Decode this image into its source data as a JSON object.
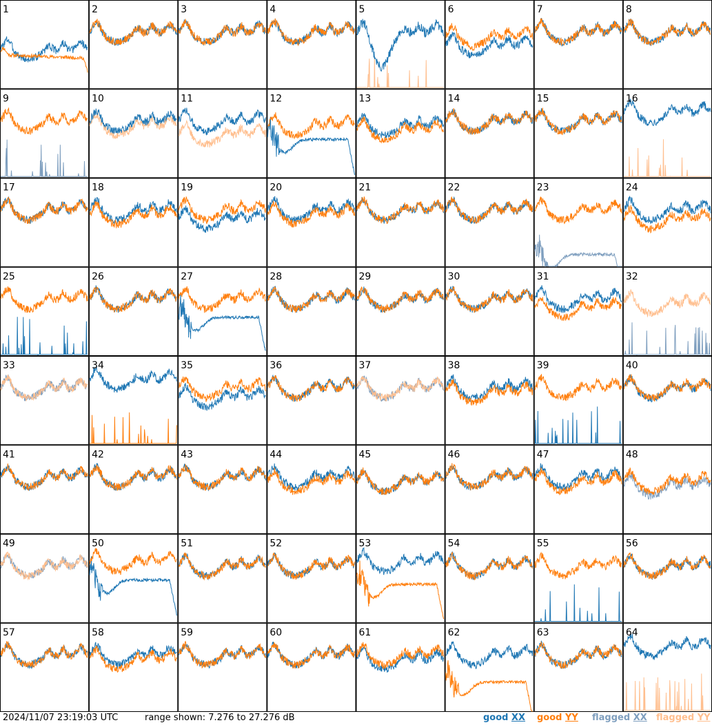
{
  "status": {
    "timestamp": "2024/11/07 23:19:03 UTC",
    "range_text": "range shown: 7.276 to 27.276 dB"
  },
  "legend": {
    "good_xx": {
      "word": "good",
      "pol": "XX",
      "color": "#1f77b4"
    },
    "good_yy": {
      "word": "good",
      "pol": "YY",
      "color": "#ff7f0e"
    },
    "flagged_xx": {
      "word": "flagged",
      "pol": "XX",
      "color": "#7f9fbf"
    },
    "flagged_yy": {
      "word": "flagged",
      "pol": "YY",
      "color": "#ffbf8f"
    }
  },
  "chart_data": {
    "type": "line",
    "ylim": [
      7.276,
      27.276
    ],
    "yunit": "dB",
    "grid": "8x8 small multiples",
    "series_styles": {
      "good_xx": "#1f77b4",
      "good_yy": "#ff7f0e",
      "flagged_xx": "#7f9fbf",
      "flagged_yy": "#ffbf8f"
    },
    "panels": [
      {
        "id": "1",
        "xx": "good",
        "yy": "good",
        "xx_mode": "normal",
        "yy_mode": "flat",
        "xx_level": 16,
        "yy_level": 15
      },
      {
        "id": "2",
        "xx": "good",
        "yy": "good",
        "xx_mode": "normal",
        "yy_mode": "normal",
        "xx_level": 20,
        "yy_level": 20
      },
      {
        "id": "3",
        "xx": "good",
        "yy": "good",
        "xx_mode": "normal",
        "yy_mode": "normal",
        "xx_level": 20,
        "yy_level": 20
      },
      {
        "id": "4",
        "xx": "good",
        "yy": "good",
        "xx_mode": "normal",
        "yy_mode": "normal",
        "xx_level": 20,
        "yy_level": 20
      },
      {
        "id": "5",
        "xx": "good",
        "yy": "flagged",
        "xx_mode": "dip",
        "yy_mode": "spikes",
        "xx_level": 20,
        "yy_level": 8
      },
      {
        "id": "6",
        "xx": "good",
        "yy": "good",
        "xx_mode": "normal",
        "yy_mode": "normal",
        "xx_level": 17,
        "yy_level": 19
      },
      {
        "id": "7",
        "xx": "good",
        "yy": "good",
        "xx_mode": "normal",
        "yy_mode": "normal",
        "xx_level": 20,
        "yy_level": 20
      },
      {
        "id": "8",
        "xx": "good",
        "yy": "good",
        "xx_mode": "normal",
        "yy_mode": "normal",
        "xx_level": 20,
        "yy_level": 20
      },
      {
        "id": "9",
        "xx": "flagged",
        "yy": "good",
        "xx_mode": "spikes",
        "yy_mode": "normal",
        "xx_level": 8,
        "yy_level": 20
      },
      {
        "id": "10",
        "xx": "good",
        "yy": "flagged",
        "xx_mode": "normal",
        "yy_mode": "normal",
        "xx_level": 20,
        "yy_level": 19
      },
      {
        "id": "11",
        "xx": "good",
        "yy": "flagged",
        "xx_mode": "normal",
        "yy_mode": "normal",
        "xx_level": 20,
        "yy_level": 17
      },
      {
        "id": "12",
        "xx": "good",
        "yy": "good",
        "xx_mode": "decay",
        "yy_mode": "normal",
        "xx_level": 16,
        "yy_level": 19
      },
      {
        "id": "13",
        "xx": "good",
        "yy": "good",
        "xx_mode": "normal",
        "yy_mode": "normal",
        "xx_level": 19,
        "yy_level": 18
      },
      {
        "id": "14",
        "xx": "good",
        "yy": "good",
        "xx_mode": "normal",
        "yy_mode": "normal",
        "xx_level": 20,
        "yy_level": 20
      },
      {
        "id": "15",
        "xx": "good",
        "yy": "good",
        "xx_mode": "normal",
        "yy_mode": "normal",
        "xx_level": 20,
        "yy_level": 20
      },
      {
        "id": "16",
        "xx": "good",
        "yy": "flagged",
        "xx_mode": "normal",
        "yy_mode": "spikes",
        "xx_level": 22,
        "yy_level": 8
      },
      {
        "id": "17",
        "xx": "good",
        "yy": "good",
        "xx_mode": "normal",
        "yy_mode": "normal",
        "xx_level": 20,
        "yy_level": 20
      },
      {
        "id": "18",
        "xx": "good",
        "yy": "good",
        "xx_mode": "normal",
        "yy_mode": "normal",
        "xx_level": 20,
        "yy_level": 19
      },
      {
        "id": "19",
        "xx": "good",
        "yy": "good",
        "xx_mode": "normal",
        "yy_mode": "normal",
        "xx_level": 18,
        "yy_level": 20
      },
      {
        "id": "20",
        "xx": "good",
        "yy": "good",
        "xx_mode": "normal",
        "yy_mode": "normal",
        "xx_level": 20,
        "yy_level": 19
      },
      {
        "id": "21",
        "xx": "good",
        "yy": "good",
        "xx_mode": "normal",
        "yy_mode": "normal",
        "xx_level": 20,
        "yy_level": 20
      },
      {
        "id": "22",
        "xx": "good",
        "yy": "good",
        "xx_mode": "normal",
        "yy_mode": "normal",
        "xx_level": 20,
        "yy_level": 20
      },
      {
        "id": "23",
        "xx": "flagged",
        "yy": "good",
        "xx_mode": "decay",
        "yy_mode": "normal",
        "xx_level": 10,
        "yy_level": 20
      },
      {
        "id": "24",
        "xx": "good",
        "yy": "good",
        "xx_mode": "normal",
        "yy_mode": "normal",
        "xx_level": 20,
        "yy_level": 18
      },
      {
        "id": "25",
        "xx": "good",
        "yy": "good",
        "xx_mode": "spikes",
        "yy_mode": "normal",
        "xx_level": 8,
        "yy_level": 20
      },
      {
        "id": "26",
        "xx": "good",
        "yy": "good",
        "xx_mode": "normal",
        "yy_mode": "normal",
        "xx_level": 20,
        "yy_level": 20
      },
      {
        "id": "27",
        "xx": "good",
        "yy": "good",
        "xx_mode": "decay",
        "yy_mode": "normal",
        "xx_level": 16,
        "yy_level": 20
      },
      {
        "id": "28",
        "xx": "good",
        "yy": "good",
        "xx_mode": "normal",
        "yy_mode": "normal",
        "xx_level": 20,
        "yy_level": 20
      },
      {
        "id": "29",
        "xx": "good",
        "yy": "good",
        "xx_mode": "normal",
        "yy_mode": "normal",
        "xx_level": 20,
        "yy_level": 20
      },
      {
        "id": "30",
        "xx": "good",
        "yy": "good",
        "xx_mode": "normal",
        "yy_mode": "normal",
        "xx_level": 20,
        "yy_level": 20
      },
      {
        "id": "31",
        "xx": "good",
        "yy": "good",
        "xx_mode": "normal",
        "yy_mode": "normal",
        "xx_level": 20,
        "yy_level": 18
      },
      {
        "id": "32",
        "xx": "flagged",
        "yy": "flagged",
        "xx_mode": "spikes",
        "yy_mode": "normal",
        "xx_level": 8,
        "yy_level": 19
      },
      {
        "id": "33",
        "xx": "flagged",
        "yy": "flagged",
        "xx_mode": "normal",
        "yy_mode": "normal",
        "xx_level": 20,
        "yy_level": 20
      },
      {
        "id": "34",
        "xx": "good",
        "yy": "good",
        "xx_mode": "normal",
        "yy_mode": "spikes",
        "xx_level": 22,
        "yy_level": 8
      },
      {
        "id": "35",
        "xx": "good",
        "yy": "good",
        "xx_mode": "normal",
        "yy_mode": "normal",
        "xx_level": 18,
        "yy_level": 20
      },
      {
        "id": "36",
        "xx": "good",
        "yy": "good",
        "xx_mode": "normal",
        "yy_mode": "normal",
        "xx_level": 20,
        "yy_level": 20
      },
      {
        "id": "37",
        "xx": "flagged",
        "yy": "flagged",
        "xx_mode": "normal",
        "yy_mode": "normal",
        "xx_level": 20,
        "yy_level": 20
      },
      {
        "id": "38",
        "xx": "good",
        "yy": "good",
        "xx_mode": "normal",
        "yy_mode": "normal",
        "xx_level": 20,
        "yy_level": 19
      },
      {
        "id": "39",
        "xx": "good",
        "yy": "good",
        "xx_mode": "spikes",
        "yy_mode": "normal",
        "xx_level": 8,
        "yy_level": 20
      },
      {
        "id": "40",
        "xx": "good",
        "yy": "good",
        "xx_mode": "normal",
        "yy_mode": "normal",
        "xx_level": 20,
        "yy_level": 20
      },
      {
        "id": "41",
        "xx": "good",
        "yy": "good",
        "xx_mode": "normal",
        "yy_mode": "normal",
        "xx_level": 20,
        "yy_level": 20
      },
      {
        "id": "42",
        "xx": "good",
        "yy": "good",
        "xx_mode": "normal",
        "yy_mode": "normal",
        "xx_level": 20,
        "yy_level": 20
      },
      {
        "id": "43",
        "xx": "good",
        "yy": "good",
        "xx_mode": "normal",
        "yy_mode": "normal",
        "xx_level": 20,
        "yy_level": 20
      },
      {
        "id": "44",
        "xx": "good",
        "yy": "good",
        "xx_mode": "normal",
        "yy_mode": "normal",
        "xx_level": 20,
        "yy_level": 19
      },
      {
        "id": "45",
        "xx": "good",
        "yy": "good",
        "xx_mode": "normal",
        "yy_mode": "normal",
        "xx_level": 19,
        "yy_level": 19
      },
      {
        "id": "46",
        "xx": "good",
        "yy": "good",
        "xx_mode": "normal",
        "yy_mode": "normal",
        "xx_level": 20,
        "yy_level": 20
      },
      {
        "id": "47",
        "xx": "good",
        "yy": "good",
        "xx_mode": "normal",
        "yy_mode": "normal",
        "xx_level": 20,
        "yy_level": 19
      },
      {
        "id": "48",
        "xx": "flagged",
        "yy": "good",
        "xx_mode": "normal",
        "yy_mode": "normal",
        "xx_level": 18,
        "yy_level": 19
      },
      {
        "id": "49",
        "xx": "flagged",
        "yy": "flagged",
        "xx_mode": "normal",
        "yy_mode": "normal",
        "xx_level": 20,
        "yy_level": 20
      },
      {
        "id": "50",
        "xx": "good",
        "yy": "good",
        "xx_mode": "decay",
        "yy_mode": "normal",
        "xx_level": 17,
        "yy_level": 21
      },
      {
        "id": "51",
        "xx": "good",
        "yy": "good",
        "xx_mode": "normal",
        "yy_mode": "normal",
        "xx_level": 20,
        "yy_level": 20
      },
      {
        "id": "52",
        "xx": "good",
        "yy": "good",
        "xx_mode": "normal",
        "yy_mode": "normal",
        "xx_level": 20,
        "yy_level": 20
      },
      {
        "id": "53",
        "xx": "good",
        "yy": "good",
        "xx_mode": "normal",
        "yy_mode": "decay",
        "xx_level": 21,
        "yy_level": 16
      },
      {
        "id": "54",
        "xx": "good",
        "yy": "good",
        "xx_mode": "normal",
        "yy_mode": "normal",
        "xx_level": 20,
        "yy_level": 20
      },
      {
        "id": "55",
        "xx": "good",
        "yy": "good",
        "xx_mode": "spikes",
        "yy_mode": "normal",
        "xx_level": 10,
        "yy_level": 20
      },
      {
        "id": "56",
        "xx": "good",
        "yy": "good",
        "xx_mode": "normal",
        "yy_mode": "normal",
        "xx_level": 20,
        "yy_level": 20
      },
      {
        "id": "57",
        "xx": "good",
        "yy": "good",
        "xx_mode": "normal",
        "yy_mode": "normal",
        "xx_level": 20,
        "yy_level": 20
      },
      {
        "id": "58",
        "xx": "good",
        "yy": "good",
        "xx_mode": "normal",
        "yy_mode": "normal",
        "xx_level": 20,
        "yy_level": 19
      },
      {
        "id": "59",
        "xx": "good",
        "yy": "good",
        "xx_mode": "normal",
        "yy_mode": "normal",
        "xx_level": 20,
        "yy_level": 20
      },
      {
        "id": "60",
        "xx": "good",
        "yy": "good",
        "xx_mode": "normal",
        "yy_mode": "normal",
        "xx_level": 20,
        "yy_level": 20
      },
      {
        "id": "61",
        "xx": "good",
        "yy": "good",
        "xx_mode": "normal",
        "yy_mode": "normal",
        "xx_level": 19,
        "yy_level": 20
      },
      {
        "id": "62",
        "xx": "good",
        "yy": "good",
        "xx_mode": "normal",
        "yy_mode": "decay",
        "xx_level": 20,
        "yy_level": 14
      },
      {
        "id": "63",
        "xx": "good",
        "yy": "good",
        "xx_mode": "normal",
        "yy_mode": "normal",
        "xx_level": 20,
        "yy_level": 20
      },
      {
        "id": "64",
        "xx": "good",
        "yy": "flagged",
        "xx_mode": "normal",
        "yy_mode": "spikes",
        "xx_level": 22,
        "yy_level": 8
      }
    ]
  }
}
